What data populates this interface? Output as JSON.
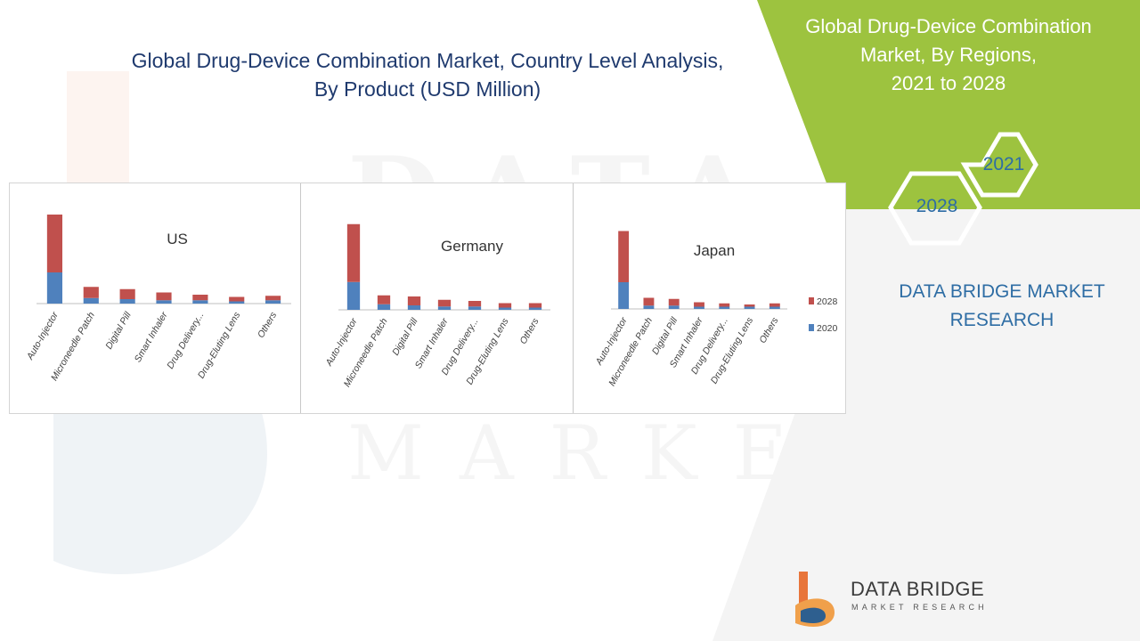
{
  "title": {
    "line1": "Global Drug-Device Combination Market, Country Level Analysis,",
    "line2": "By Product (USD Million)"
  },
  "side_panel": {
    "title_line1": "Global Drug-Device Combination",
    "title_line2": "Market, By Regions,",
    "title_line3": "2021 to 2028",
    "hex_year_1": "2021",
    "hex_year_2": "2028",
    "brand_line1": "DATA BRIDGE MARKET",
    "brand_line2": "RESEARCH",
    "colors": {
      "green": "#9dc33f",
      "accent_blue": "#2e6da4"
    }
  },
  "footer": {
    "brand_name": "DATA BRIDGE",
    "brand_sub": "MARKET RESEARCH"
  },
  "colors": {
    "series_2028": "#c0504d",
    "series_2020": "#4f81bd"
  },
  "chart_data": [
    {
      "type": "bar",
      "stacked": true,
      "title": "US",
      "categories": [
        "Auto-Injector",
        "Microneedle Patch",
        "Digital Pill",
        "Smart Inhaler",
        "Drug Delivery...",
        "Drug-Eluting Lens",
        "Others"
      ],
      "series": [
        {
          "name": "2020",
          "values": [
            28,
            5,
            4,
            3,
            3,
            2,
            3
          ]
        },
        {
          "name": "2028",
          "values": [
            52,
            10,
            9,
            7,
            5,
            4,
            4
          ]
        }
      ],
      "ylim": [
        0,
        100
      ],
      "grid": false
    },
    {
      "type": "bar",
      "stacked": true,
      "title": "Germany",
      "categories": [
        "Auto-Injector",
        "Microneedle Patch",
        "Digital Pill",
        "Smart Inhaler",
        "Drug Delivery...",
        "Drug-Eluting Lens",
        "Others"
      ],
      "series": [
        {
          "name": "2020",
          "values": [
            25,
            5,
            4,
            3,
            3,
            2,
            2
          ]
        },
        {
          "name": "2028",
          "values": [
            52,
            8,
            8,
            6,
            5,
            4,
            4
          ]
        }
      ],
      "ylim": [
        0,
        100
      ],
      "grid": false
    },
    {
      "type": "bar",
      "stacked": true,
      "title": "Japan",
      "categories": [
        "Auto-Injector",
        "Microneedle Patch",
        "Digital Pill",
        "Smart Inhaler",
        "Drug Delivery...",
        "Drug-Eluting Lens",
        "Others"
      ],
      "series": [
        {
          "name": "2020",
          "values": [
            24,
            3,
            3,
            2,
            2,
            2,
            2
          ]
        },
        {
          "name": "2028",
          "values": [
            46,
            7,
            6,
            4,
            3,
            2,
            3
          ]
        }
      ],
      "ylim": [
        0,
        100
      ],
      "grid": false,
      "legend": [
        "2028",
        "2020"
      ],
      "legend_position": "right"
    }
  ]
}
